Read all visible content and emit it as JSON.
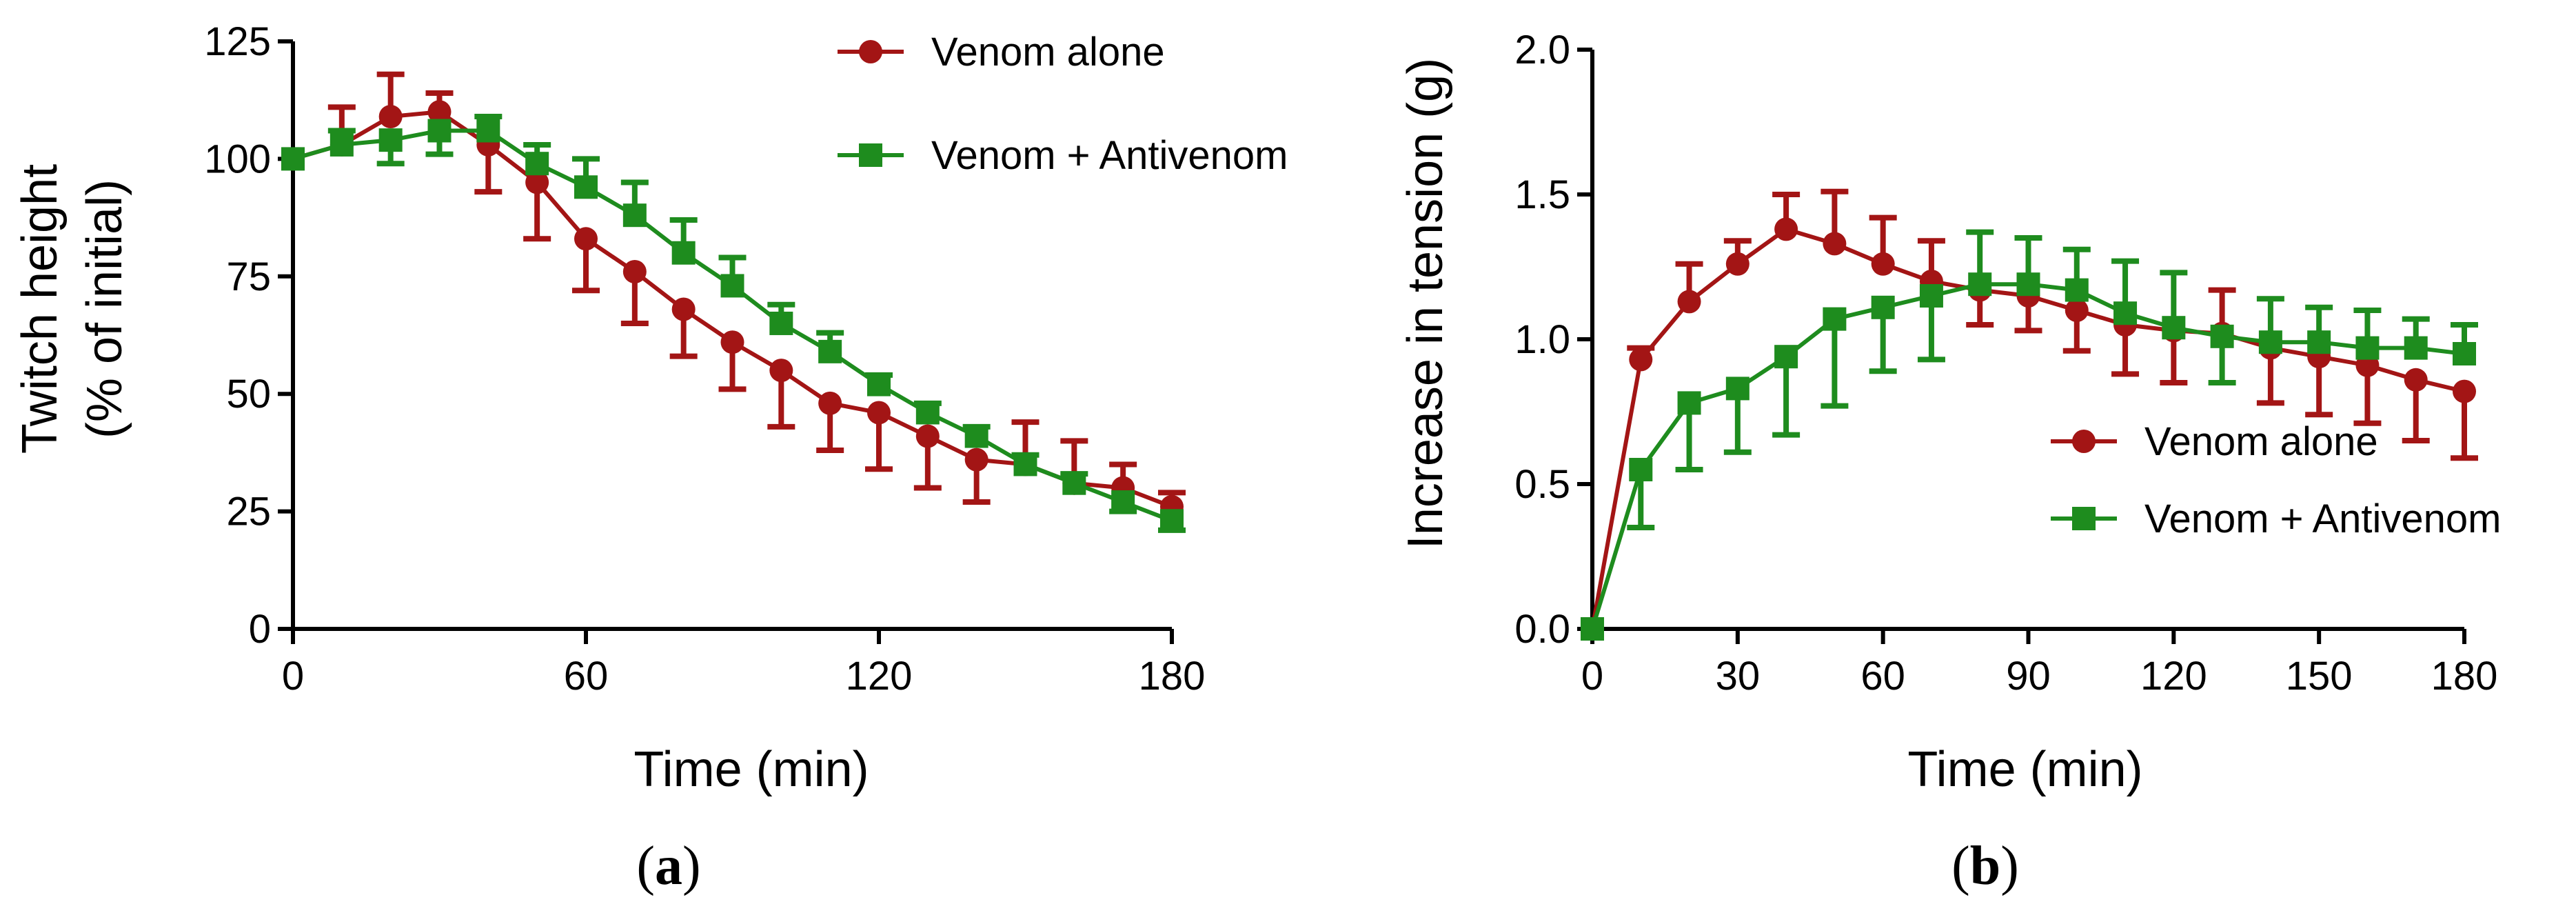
{
  "figure": {
    "panels": [
      {
        "label_open": "(",
        "label_letter": "a",
        "label_close": ")"
      },
      {
        "label_open": "(",
        "label_letter": "b",
        "label_close": ")"
      }
    ]
  },
  "chart_data": [
    {
      "type": "line",
      "panel": "a",
      "xlabel": "Time (min)",
      "ylabel": [
        "Twitch height",
        "(% of initial)"
      ],
      "xlim": [
        0,
        180
      ],
      "ylim": [
        0,
        125
      ],
      "xticks": [
        0,
        60,
        120,
        180
      ],
      "yticks": [
        0,
        25,
        50,
        75,
        100,
        125
      ],
      "x": [
        0,
        10,
        20,
        30,
        40,
        50,
        60,
        70,
        80,
        90,
        100,
        110,
        120,
        130,
        140,
        150,
        160,
        170,
        180
      ],
      "legend_position": "top-right",
      "series": [
        {
          "name": "Venom alone",
          "marker": "circle",
          "color": "#a31515",
          "values": [
            100,
            103,
            109,
            110,
            103,
            95,
            83,
            76,
            68,
            61,
            55,
            48,
            46,
            41,
            36,
            35,
            31,
            30,
            26
          ],
          "error": [
            0,
            8,
            9,
            4,
            10,
            12,
            11,
            11,
            10,
            10,
            12,
            10,
            12,
            11,
            9,
            9,
            9,
            5,
            3
          ]
        },
        {
          "name": "Venom + Antivenom",
          "marker": "square",
          "color": "#1e8c1e",
          "values": [
            100,
            103,
            104,
            106,
            106,
            99,
            94,
            88,
            80,
            73,
            65,
            59,
            52,
            46,
            41,
            35,
            31,
            27,
            23
          ],
          "error": [
            0,
            3,
            5,
            5,
            3,
            4,
            6,
            7,
            7,
            6,
            4,
            4,
            2,
            2,
            2,
            2,
            2,
            2,
            2
          ]
        }
      ]
    },
    {
      "type": "line",
      "panel": "b",
      "xlabel": "Time (min)",
      "ylabel": [
        "Increase in tension (g)"
      ],
      "xlim": [
        0,
        180
      ],
      "ylim": [
        0,
        2.0
      ],
      "xticks": [
        0,
        30,
        60,
        90,
        120,
        150,
        180
      ],
      "yticks": [
        0.0,
        0.5,
        1.0,
        1.5,
        2.0
      ],
      "ytick_labels": [
        "0.0",
        "0.5",
        "1.0",
        "1.5",
        "2.0"
      ],
      "x": [
        0,
        10,
        20,
        30,
        40,
        50,
        60,
        70,
        80,
        90,
        100,
        110,
        120,
        130,
        140,
        150,
        160,
        170,
        180
      ],
      "legend_position": "center-right",
      "series": [
        {
          "name": "Venom alone",
          "marker": "circle",
          "color": "#a31515",
          "values": [
            0.0,
            0.93,
            1.13,
            1.26,
            1.38,
            1.33,
            1.26,
            1.2,
            1.17,
            1.15,
            1.1,
            1.05,
            1.03,
            1.02,
            0.97,
            0.94,
            0.91,
            0.86,
            0.82
          ],
          "error": [
            0,
            0.04,
            0.13,
            0.08,
            0.12,
            0.18,
            0.16,
            0.14,
            0.12,
            0.12,
            0.14,
            0.17,
            0.18,
            0.15,
            0.19,
            0.2,
            0.2,
            0.21,
            0.23
          ]
        },
        {
          "name": "Venom + Antivenom",
          "marker": "square",
          "color": "#1e8c1e",
          "values": [
            0.0,
            0.55,
            0.78,
            0.83,
            0.94,
            1.07,
            1.11,
            1.15,
            1.19,
            1.19,
            1.17,
            1.09,
            1.04,
            1.01,
            0.99,
            0.99,
            0.97,
            0.97,
            0.95
          ],
          "error": [
            0,
            0.2,
            0.23,
            0.22,
            0.27,
            0.3,
            0.22,
            0.22,
            0.18,
            0.16,
            0.14,
            0.18,
            0.19,
            0.16,
            0.15,
            0.12,
            0.13,
            0.1,
            0.1
          ]
        }
      ]
    }
  ]
}
